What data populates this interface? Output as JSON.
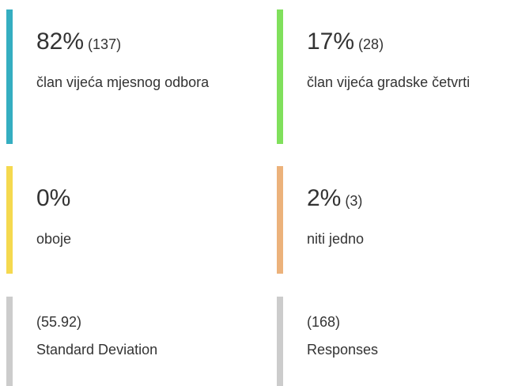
{
  "cards": [
    {
      "percent": "82%",
      "count": "(137)",
      "label": "član vijeća mjesnog odbora",
      "color": "#35aec1"
    },
    {
      "percent": "17%",
      "count": "(28)",
      "label": "član vijeća gradske četvrti",
      "color": "#80e05c"
    },
    {
      "percent": "0%",
      "label": "oboje",
      "color": "#f5d94f"
    },
    {
      "percent": "2%",
      "count": "(3)",
      "label": "niti jedno",
      "color": "#ecb27b"
    }
  ],
  "stats": [
    {
      "value": "(55.92)",
      "label": "Standard Deviation",
      "color": "#cccccc"
    },
    {
      "value": "(168)",
      "label": "Responses",
      "color": "#cccccc"
    }
  ]
}
